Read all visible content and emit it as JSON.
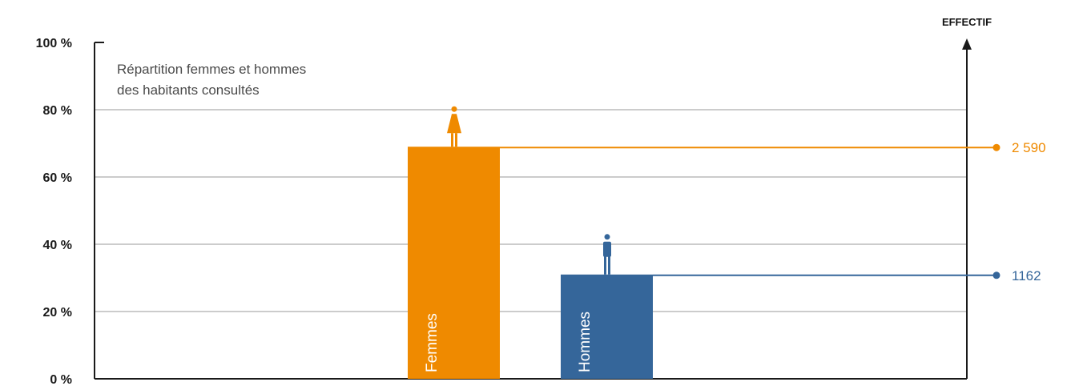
{
  "chart_data": {
    "type": "bar",
    "title_lines": [
      "Répartition femmes et hommes",
      "des habitants consultés"
    ],
    "right_axis_label": "EFFECTIF",
    "y_ticks": [
      "0 %",
      "20 %",
      "40 %",
      "60 %",
      "80 %",
      "100 %"
    ],
    "ylim": [
      0,
      100
    ],
    "grid": true,
    "categories": [
      "Femmes",
      "Hommes"
    ],
    "series": [
      {
        "values": [
          69,
          31
        ]
      }
    ],
    "effectifs": [
      "2 590",
      "1162"
    ],
    "colors": [
      "#ef8a00",
      "#35669a"
    ],
    "icons": [
      "woman-icon",
      "man-icon"
    ]
  }
}
